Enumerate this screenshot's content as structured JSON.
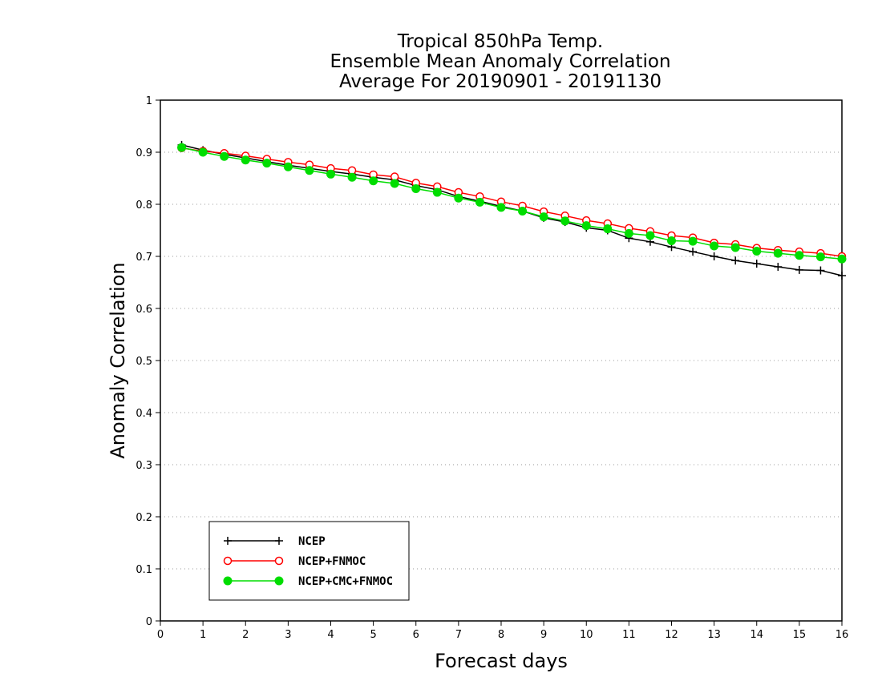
{
  "chart_data": {
    "type": "line",
    "title": [
      "Tropical 850hPa Temp.",
      "Ensemble Mean Anomaly Correlation",
      "Average For 20190901 - 20191130"
    ],
    "xlabel": "Forecast days",
    "ylabel": "Anomaly Correlation",
    "xlim": [
      0,
      16
    ],
    "ylim": [
      0,
      1
    ],
    "xticks": [
      "0",
      "1",
      "2",
      "3",
      "4",
      "5",
      "6",
      "7",
      "8",
      "9",
      "10",
      "11",
      "12",
      "13",
      "14",
      "15",
      "16"
    ],
    "yticks": [
      "0",
      "0.1",
      "0.2",
      "0.3",
      "0.4",
      "0.5",
      "0.6",
      "0.7",
      "0.8",
      "0.9",
      "1"
    ],
    "grid": true,
    "legend_position": "bottom-left",
    "x": [
      0.5,
      1,
      1.5,
      2,
      2.5,
      3,
      3.5,
      4,
      4.5,
      5,
      5.5,
      6,
      6.5,
      7,
      7.5,
      8,
      8.5,
      9,
      9.5,
      10,
      10.5,
      11,
      11.5,
      12,
      12.5,
      13,
      13.5,
      14,
      14.5,
      15,
      15.5,
      16
    ],
    "series": [
      {
        "name": "NCEP",
        "color": "#000000",
        "marker": "plus",
        "values": [
          0.914,
          0.904,
          0.896,
          0.889,
          0.882,
          0.875,
          0.869,
          0.863,
          0.858,
          0.852,
          0.847,
          0.836,
          0.828,
          0.815,
          0.806,
          0.796,
          0.787,
          0.774,
          0.766,
          0.755,
          0.75,
          0.735,
          0.728,
          0.718,
          0.709,
          0.7,
          0.692,
          0.686,
          0.68,
          0.674,
          0.673,
          0.663
        ]
      },
      {
        "name": "NCEP+FNMOC",
        "color": "#ff0000",
        "marker": "open-circle",
        "values": [
          0.908,
          0.902,
          0.898,
          0.893,
          0.887,
          0.881,
          0.876,
          0.869,
          0.865,
          0.857,
          0.853,
          0.841,
          0.834,
          0.823,
          0.815,
          0.805,
          0.797,
          0.786,
          0.778,
          0.769,
          0.763,
          0.754,
          0.748,
          0.74,
          0.736,
          0.726,
          0.723,
          0.716,
          0.712,
          0.709,
          0.706,
          0.7
        ]
      },
      {
        "name": "NCEP+CMC+FNMOC",
        "color": "#00dd00",
        "marker": "filled-circle",
        "values": [
          0.909,
          0.9,
          0.892,
          0.885,
          0.879,
          0.872,
          0.865,
          0.858,
          0.852,
          0.845,
          0.84,
          0.83,
          0.823,
          0.812,
          0.804,
          0.794,
          0.787,
          0.776,
          0.768,
          0.759,
          0.753,
          0.744,
          0.74,
          0.73,
          0.729,
          0.72,
          0.717,
          0.71,
          0.706,
          0.702,
          0.699,
          0.695
        ]
      }
    ]
  }
}
